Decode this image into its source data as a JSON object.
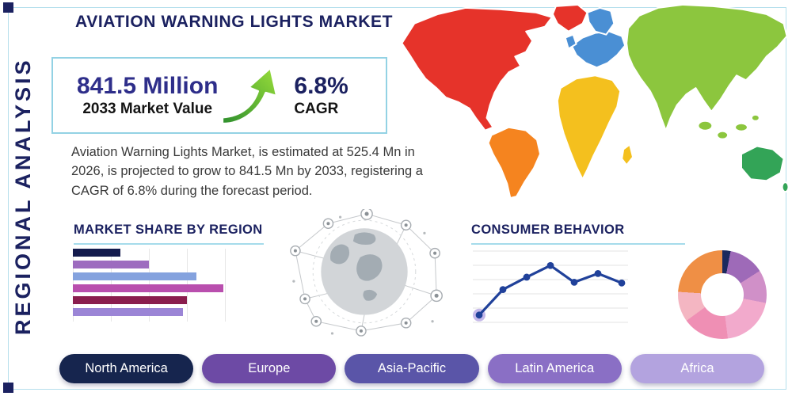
{
  "page": {
    "title": "AVIATION WARNING LIGHTS MARKET",
    "side_label": "REGIONAL ANALYSIS"
  },
  "stats": {
    "market_value": "841.5 Million",
    "market_value_label": "2033 Market Value",
    "cagr_value": "6.8%",
    "cagr_label": "CAGR",
    "description": "Aviation Warning Lights Market, is estimated at 525.4 Mn in 2026, is projected to grow to 841.5 Mn by 2033, registering a CAGR of 6.8% during the forecast period."
  },
  "sections": {
    "market_share_title": "MARKET SHARE BY REGION",
    "consumer_behavior_title": "CONSUMER BEHAVIOR"
  },
  "regions": [
    {
      "label": "North America",
      "color": "#16254e"
    },
    {
      "label": "Europe",
      "color": "#6d4aa5"
    },
    {
      "label": "Asia-Pacific",
      "color": "#5a55a8"
    },
    {
      "label": "Latin America",
      "color": "#8a6fc5"
    },
    {
      "label": "Africa",
      "color": "#b3a3df"
    }
  ],
  "map": {
    "colors": {
      "north_america": "#e6332a",
      "greenland": "#e6332a",
      "south_america": "#f5841f",
      "europe": "#4a8fd4",
      "africa": "#f4c01e",
      "asia": "#8cc63e",
      "australia": "#33a457"
    }
  },
  "chart_data": [
    {
      "type": "bar",
      "orientation": "horizontal",
      "title": "MARKET SHARE BY REGION",
      "values": [
        25,
        40,
        65,
        79,
        60,
        58
      ],
      "xlim": [
        0,
        100
      ],
      "colors": [
        "#141b4d",
        "#9d6cbf",
        "#84a2de",
        "#b94fae",
        "#8a1e4e",
        "#9b85d6"
      ],
      "grid": true
    },
    {
      "type": "line",
      "title": "CONSUMER BEHAVIOR",
      "x": [
        1,
        2,
        3,
        4,
        5,
        6,
        7
      ],
      "y": [
        10,
        45,
        62,
        78,
        55,
        67,
        54
      ],
      "ylim": [
        0,
        100
      ],
      "color": "#20419a",
      "grid": true,
      "first_point_halo_color": "#b7a6e3"
    },
    {
      "type": "pie",
      "donut": true,
      "values": [
        3,
        13,
        12,
        20,
        17,
        11,
        24
      ],
      "colors": [
        "#1c2a5e",
        "#9e6ab8",
        "#d090c8",
        "#f2aacc",
        "#ef8fb4",
        "#f4b6c2",
        "#ef8f45"
      ]
    }
  ]
}
